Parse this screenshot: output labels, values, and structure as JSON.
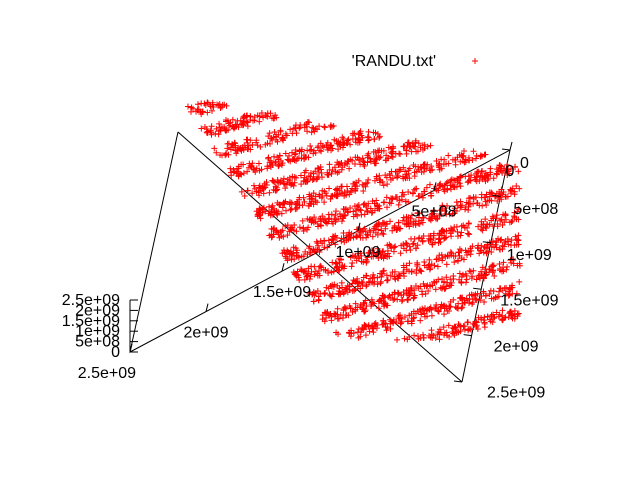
{
  "chart_data": {
    "type": "scatter",
    "projection": "3d",
    "title": "",
    "legend": {
      "placement": "top-right",
      "entries": [
        {
          "label": "'RANDU.txt'",
          "marker": "plus",
          "color": "#ff0000"
        }
      ]
    },
    "series": [
      {
        "name": "'RANDU.txt'",
        "color": "#ff0000",
        "marker": "plus",
        "points": [
          [
            1500000000,
            1900000000,
            1350000000
          ],
          [
            0,
            2100000000,
            1300000000
          ],
          [
            600000000,
            0,
            700000000
          ],
          [
            2300000000,
            600000000,
            500000000
          ]
        ]
      }
    ],
    "axes": {
      "x": {
        "label": "",
        "range": [
          0,
          2500000000
        ],
        "ticks": [
          {
            "value": 2500000000,
            "label": "2.5e+09"
          },
          {
            "value": 2000000000,
            "label": "2e+09"
          },
          {
            "value": 1500000000,
            "label": "1.5e+09"
          },
          {
            "value": 1000000000,
            "label": "1e+09"
          },
          {
            "value": 500000000,
            "label": "5e+08"
          },
          {
            "value": 0,
            "label": "0"
          }
        ]
      },
      "y": {
        "label": "",
        "range": [
          0,
          2500000000
        ],
        "ticks": [
          {
            "value": 0,
            "label": "0"
          },
          {
            "value": 500000000,
            "label": "5e+08"
          },
          {
            "value": 1000000000,
            "label": "1e+09"
          },
          {
            "value": 1500000000,
            "label": "1.5e+09"
          },
          {
            "value": 2000000000,
            "label": "2e+09"
          },
          {
            "value": 2500000000,
            "label": "2.5e+09"
          }
        ]
      },
      "z": {
        "label": "",
        "range": [
          0,
          2500000000
        ],
        "ticks": [
          {
            "value": 2500000000,
            "label": "2.5e+09"
          },
          {
            "value": 2000000000,
            "label": "2e+09"
          },
          {
            "value": 1500000000,
            "label": "1.5e+09"
          },
          {
            "value": 1000000000,
            "label": "1e+09"
          },
          {
            "value": 500000000,
            "label": "5e+08"
          },
          {
            "value": 0,
            "label": "0"
          }
        ]
      }
    },
    "grid": false
  }
}
